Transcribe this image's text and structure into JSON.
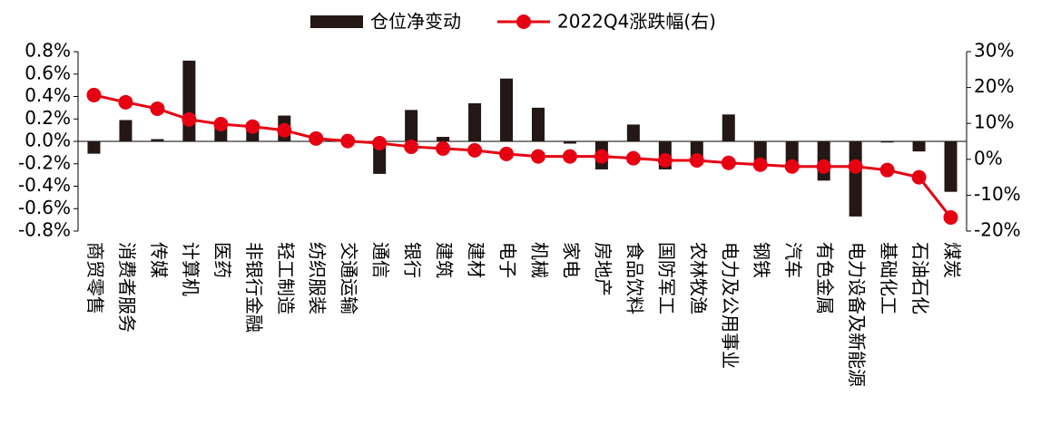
{
  "chart_data": {
    "type": "bar-line",
    "categories": [
      "商贸零售",
      "消费者服务",
      "传媒",
      "计算机",
      "医药",
      "非银行金融",
      "轻工制造",
      "纺织服装",
      "交通运输",
      "通信",
      "银行",
      "建筑",
      "建材",
      "电子",
      "机械",
      "家电",
      "房地产",
      "食品饮料",
      "国防军工",
      "农林牧渔",
      "电力及公用事业",
      "钢铁",
      "汽车",
      "有色金属",
      "电力设备及新能源",
      "基础化工",
      "石油石化",
      "煤炭"
    ],
    "series": [
      {
        "name": "仓位净变动",
        "type": "bar",
        "color": "#231815",
        "values": [
          -0.11,
          0.19,
          0.02,
          0.72,
          0.12,
          0.1,
          0.23,
          -0.01,
          0.01,
          -0.29,
          0.28,
          0.04,
          0.34,
          0.56,
          0.3,
          -0.02,
          -0.25,
          0.15,
          -0.25,
          -0.15,
          0.24,
          -0.2,
          -0.2,
          -0.35,
          -0.67,
          -0.01,
          -0.09,
          -0.45
        ]
      },
      {
        "name": "2022Q4涨跌幅(右)",
        "type": "line",
        "axis": "y2",
        "color": "#e60012",
        "values": [
          17.9,
          15.9,
          14.1,
          11.1,
          9.8,
          9.1,
          8.1,
          5.8,
          5.1,
          4.5,
          3.5,
          3.0,
          2.5,
          1.5,
          0.8,
          0.8,
          0.8,
          0.3,
          -0.3,
          -0.3,
          -1.0,
          -1.5,
          -2.0,
          -2.0,
          -2.0,
          -3.0,
          -5.0,
          -16.2
        ]
      }
    ],
    "ylim": [
      -0.8,
      0.8
    ],
    "yticks": [
      {
        "value": -0.8,
        "label": "-0.8%"
      },
      {
        "value": -0.6,
        "label": "-0.6%"
      },
      {
        "value": -0.4,
        "label": "-0.4%"
      },
      {
        "value": -0.2,
        "label": "-0.2%"
      },
      {
        "value": 0,
        "label": "0.0%"
      },
      {
        "value": 0.2,
        "label": "0.2%"
      },
      {
        "value": 0.4,
        "label": "0.4%"
      },
      {
        "value": 0.6,
        "label": "0.6%"
      },
      {
        "value": 0.8,
        "label": "0.8%"
      }
    ],
    "y2lim": [
      -20,
      30
    ],
    "y2ticks": [
      {
        "value": -20,
        "label": "-20%"
      },
      {
        "value": -10,
        "label": "-10%"
      },
      {
        "value": 0,
        "label": "0%"
      },
      {
        "value": 10,
        "label": "10%"
      },
      {
        "value": 20,
        "label": "20%"
      },
      {
        "value": 30,
        "label": "30%"
      }
    ],
    "legend": "top"
  }
}
